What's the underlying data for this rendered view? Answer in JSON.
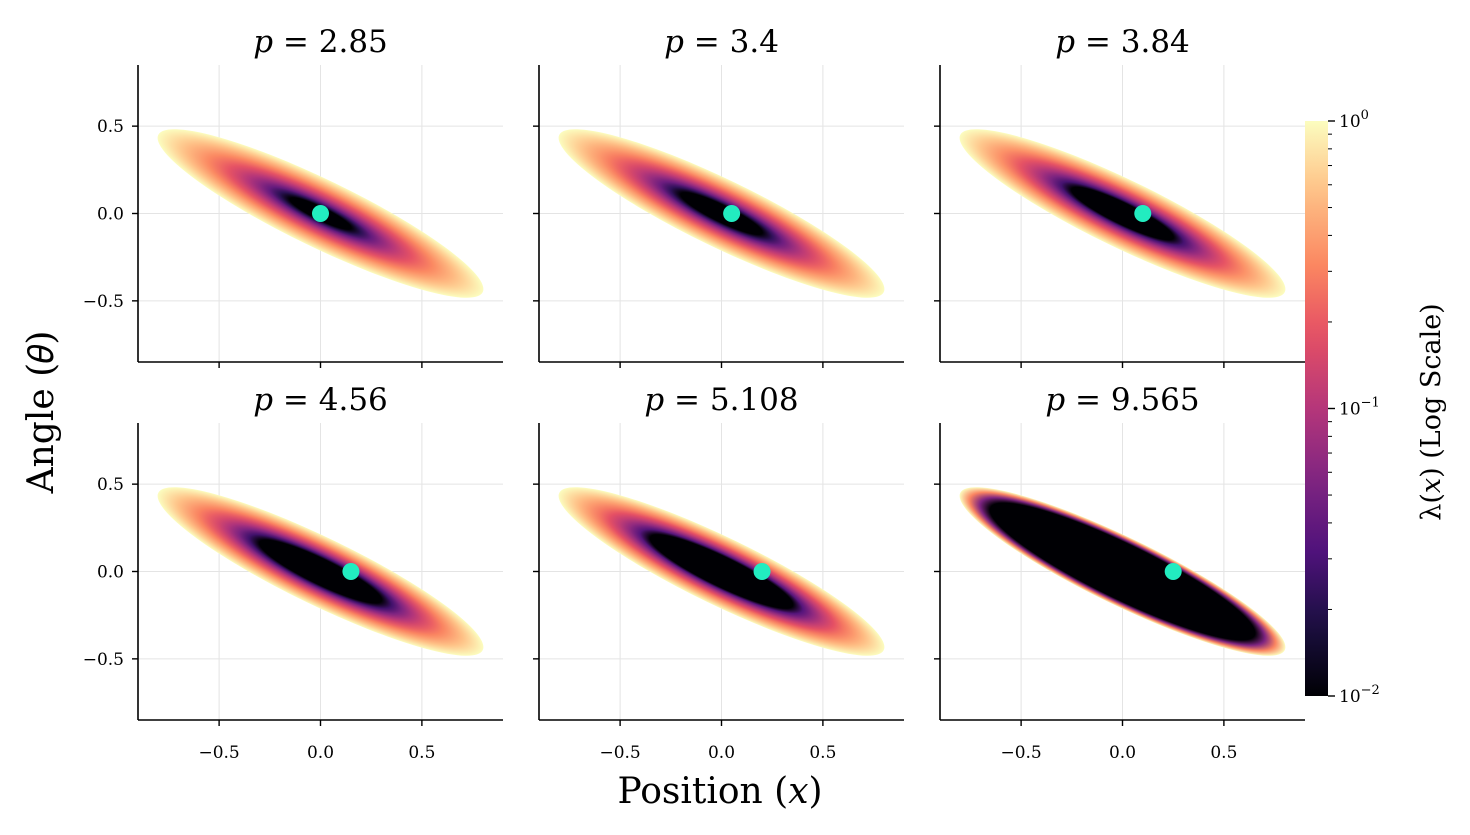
{
  "chart_data": {
    "type": "heatmap",
    "xlabel": "Position (𝑥)",
    "ylabel": "Angle (𝜃)",
    "xlim": [
      -0.9,
      0.9
    ],
    "ylim": [
      -0.85,
      0.85
    ],
    "xticks": [
      -0.5,
      0.0,
      0.5
    ],
    "yticks": [
      0.5,
      0.0,
      -0.5
    ],
    "xtick_labels": [
      "−0.5",
      "0.0",
      "0.5"
    ],
    "ytick_labels": [
      "0.5",
      "0.0",
      "−0.5"
    ],
    "grid": true,
    "colormap": "magma",
    "colorbar": {
      "label": "λ(𝑥) (Log Scale)",
      "scale": "log",
      "range": [
        0.01,
        1
      ],
      "ticks": [
        {
          "value": 1,
          "base": "10",
          "exp": "0"
        },
        {
          "value": 0.1,
          "base": "10",
          "exp": "−1"
        },
        {
          "value": 0.01,
          "base": "10",
          "exp": "−2"
        }
      ]
    },
    "ellipse": {
      "center": [
        0,
        0
      ],
      "direction": [
        -0.8,
        0.45
      ],
      "semi_major_length": 0.918,
      "semi_minor": 0.21
    },
    "marker": {
      "color": "#22ecc0",
      "y": 0.0
    },
    "panels": [
      {
        "title": "p = 2.85",
        "p_label": "𝑝",
        "p_value": "2.85",
        "marker_x": 0.0,
        "dark_scale": 0.22,
        "gamma": 1.0
      },
      {
        "title": "p = 3.4",
        "p_label": "𝑝",
        "p_value": "3.4",
        "marker_x": 0.05,
        "dark_scale": 0.28,
        "gamma": 1.0
      },
      {
        "title": "p = 3.84",
        "p_label": "𝑝",
        "p_value": "3.84",
        "marker_x": 0.1,
        "dark_scale": 0.33,
        "gamma": 1.0
      },
      {
        "title": "p = 4.56",
        "p_label": "𝑝",
        "p_value": "4.56",
        "marker_x": 0.15,
        "dark_scale": 0.4,
        "gamma": 1.0
      },
      {
        "title": "p = 5.108",
        "p_label": "𝑝",
        "p_value": "5.108",
        "marker_x": 0.2,
        "dark_scale": 0.45,
        "gamma": 1.0
      },
      {
        "title": "p = 9.565",
        "p_label": "𝑝",
        "p_value": "9.565",
        "marker_x": 0.25,
        "dark_scale": 0.85,
        "gamma": 1.0
      }
    ]
  }
}
